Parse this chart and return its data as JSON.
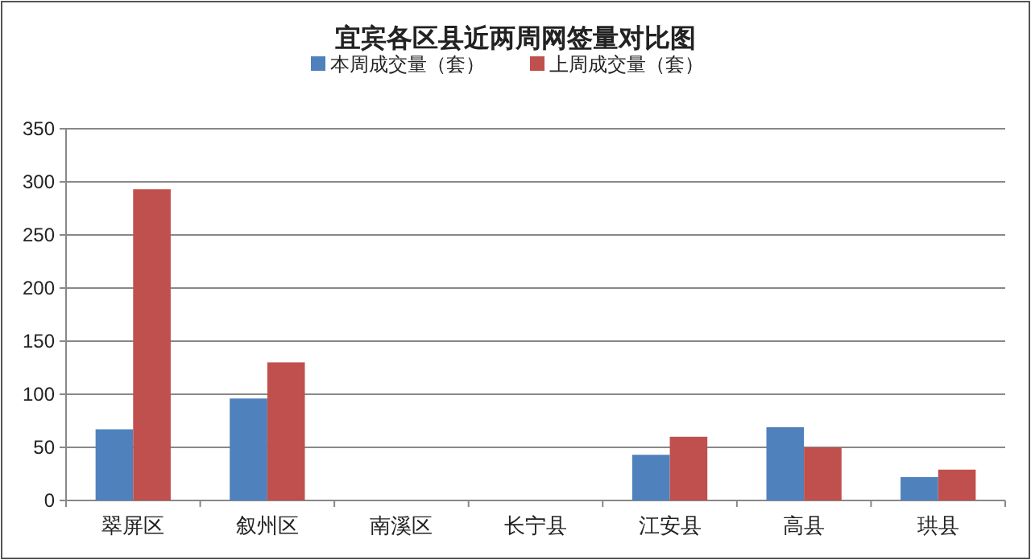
{
  "chart_data": {
    "type": "bar",
    "title": "宜宾各区县近两周网签量对比图",
    "categories": [
      "翠屏区",
      "叙州区",
      "南溪区",
      "长宁县",
      "江安县",
      "高县",
      "珙县"
    ],
    "series": [
      {
        "name": "本周成交量（套）",
        "color": "#4f81bd",
        "values": [
          67,
          96,
          0,
          0,
          43,
          69,
          22
        ]
      },
      {
        "name": "上周成交量（套）",
        "color": "#c0504d",
        "values": [
          293,
          130,
          0,
          0,
          60,
          50,
          29
        ]
      }
    ],
    "ylim": [
      0,
      350
    ],
    "yticks": [
      0,
      50,
      100,
      150,
      200,
      250,
      300,
      350
    ],
    "grid": "y",
    "legend": "top"
  }
}
